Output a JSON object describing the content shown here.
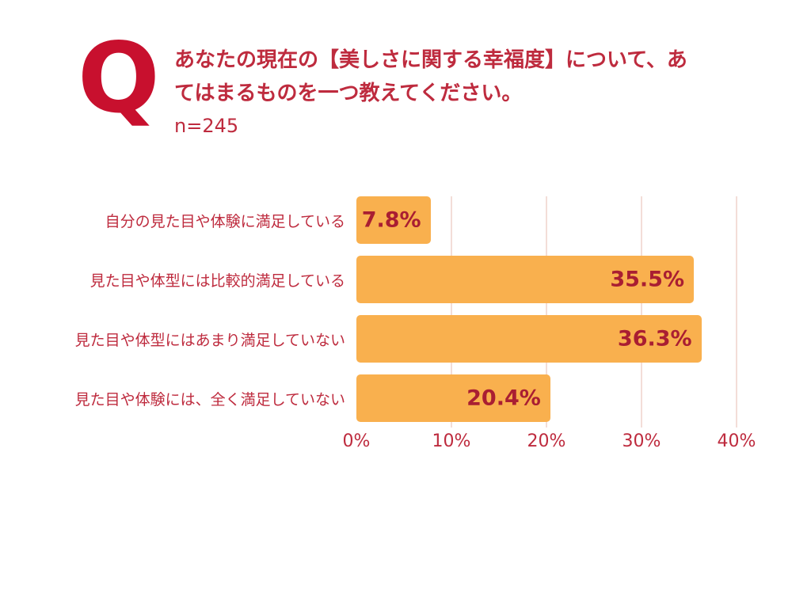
{
  "header": {
    "q_mark": "Q",
    "question": "あなたの現在の【美しさに関する幸福度】について、あてはまるものを一つ教えてください。",
    "sample_size": "n=245"
  },
  "colors": {
    "q_mark": "#C8102E",
    "text": "#BE2B3E",
    "value_label": "#A91E32",
    "bar": "#F9B04E",
    "gridline": "#F3DDD8",
    "background": "#FFFFFF"
  },
  "chart_data": {
    "type": "bar",
    "orientation": "horizontal",
    "title": "あなたの現在の【美しさに関する幸福度】について、あてはまるものを一つ教えてください。 n=245",
    "categories": [
      "自分の見た目や体験に満足している",
      "見た目や体型には比較的満足している",
      "見た目や体型にはあまり満足していない",
      "見た目や体験には、全く満足していない"
    ],
    "values": [
      7.8,
      35.5,
      36.3,
      20.4
    ],
    "value_labels": [
      "7.8%",
      "35.5%",
      "36.3%",
      "20.4%"
    ],
    "x_tick_labels": [
      "0%",
      "10%",
      "20%",
      "30%",
      "40%"
    ],
    "x_tick_values": [
      0,
      10,
      20,
      30,
      40
    ],
    "xlim": [
      0,
      40
    ],
    "xlabel": "",
    "ylabel": "",
    "grid": true,
    "legend": false
  }
}
